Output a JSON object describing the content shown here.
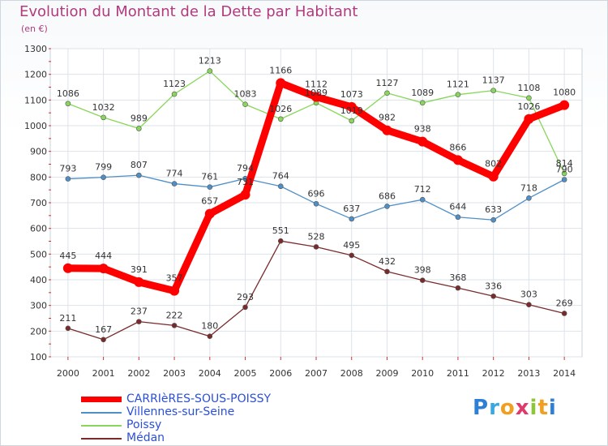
{
  "chart_data": {
    "type": "line",
    "title": "Evolution du Montant de la Dette par Habitant",
    "subtitle": "(en €)",
    "x": [
      "2000",
      "2001",
      "2002",
      "2003",
      "2004",
      "2005",
      "2006",
      "2007",
      "2008",
      "2009",
      "2010",
      "2011",
      "2012",
      "2013",
      "2014"
    ],
    "y_ticks": [
      "1300",
      "1200",
      "1100",
      "1000",
      "900",
      "800",
      "700",
      "600",
      "500",
      "400",
      "300",
      "200",
      "100"
    ],
    "ylim": [
      100,
      1300
    ],
    "grid": true,
    "legend_position": "bottom-left",
    "series": [
      {
        "name": "CARRIèRES-SOUS-POISSY",
        "color": "#ff0000",
        "values": [
          445,
          444,
          391,
          357,
          657,
          731,
          1166,
          1112,
          1073,
          982,
          938,
          866,
          802,
          1026,
          1080
        ],
        "labels": [
          "445",
          "444",
          "391",
          "357",
          "657",
          "731",
          "1166",
          "1112",
          "1073",
          "982",
          "938",
          "866",
          "802",
          "1026",
          "1080"
        ]
      },
      {
        "name": "Villennes-sur-Seine",
        "color": "#4f8fc8",
        "values": [
          793,
          799,
          807,
          774,
          761,
          794,
          764,
          696,
          637,
          686,
          712,
          644,
          633,
          718,
          790
        ],
        "labels": [
          "793",
          "799",
          "807",
          "774",
          "761",
          "794",
          "764",
          "696",
          "637",
          "686",
          "712",
          "644",
          "633",
          "718",
          "790"
        ]
      },
      {
        "name": "Poissy",
        "color": "#88d65a",
        "values": [
          1086,
          1032,
          989,
          1123,
          1213,
          1083,
          1026,
          1089,
          1019,
          1127,
          1089,
          1121,
          1137,
          1108,
          814
        ],
        "labels": [
          "1086",
          "1032",
          "989",
          "1123",
          "1213",
          "1083",
          "1026",
          "1089",
          "1019",
          "1127",
          "1089",
          "1121",
          "1137",
          "1108",
          "814"
        ]
      },
      {
        "name": "Médan",
        "color": "#7a2a2a",
        "values": [
          211,
          167,
          237,
          222,
          180,
          293,
          551,
          528,
          495,
          432,
          398,
          368,
          336,
          303,
          269
        ],
        "labels": [
          "211",
          "167",
          "237",
          "222",
          "180",
          "293",
          "551",
          "528",
          "495",
          "432",
          "398",
          "368",
          "336",
          "303",
          "269"
        ]
      }
    ]
  },
  "logo_text": "Proxiti"
}
